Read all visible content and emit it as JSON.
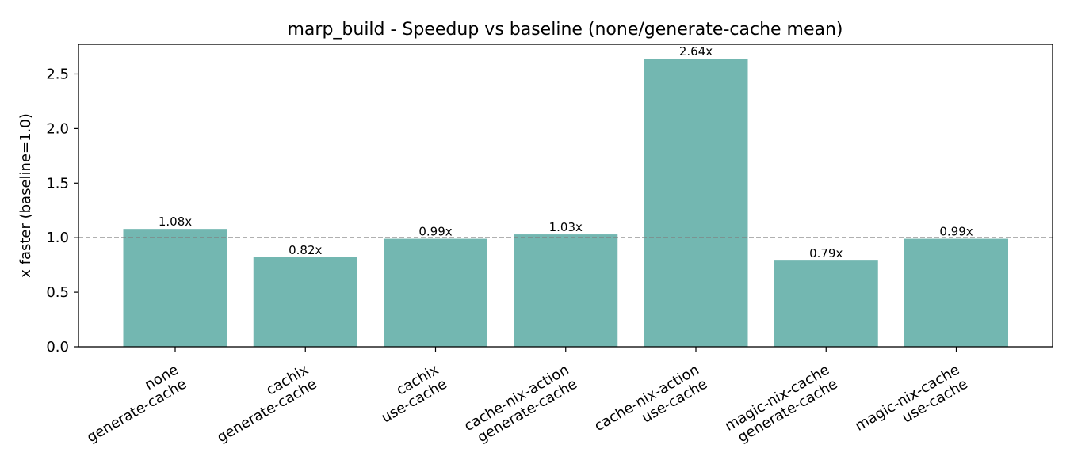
{
  "chart_data": {
    "type": "bar",
    "title": "marp_build - Speedup vs baseline (none/generate-cache mean)",
    "xlabel": "",
    "ylabel": "x faster (baseline=1.0)",
    "ylim": [
      0,
      2.772
    ],
    "yticks": [
      0.0,
      0.5,
      1.0,
      1.5,
      2.0,
      2.5
    ],
    "ytick_labels": [
      "0.0",
      "0.5",
      "1.0",
      "1.5",
      "2.0",
      "2.5"
    ],
    "categories": [
      [
        "none",
        "generate-cache"
      ],
      [
        "cachix",
        "generate-cache"
      ],
      [
        "cachix",
        "use-cache"
      ],
      [
        "cache-nix-action",
        "generate-cache"
      ],
      [
        "cache-nix-action",
        "use-cache"
      ],
      [
        "magic-nix-cache",
        "generate-cache"
      ],
      [
        "magic-nix-cache",
        "use-cache"
      ]
    ],
    "values": [
      1.08,
      0.82,
      0.99,
      1.03,
      2.64,
      0.79,
      0.99
    ],
    "value_labels": [
      "1.08x",
      "0.82x",
      "0.99x",
      "1.03x",
      "2.64x",
      "0.79x",
      "0.99x"
    ],
    "reference_line": {
      "y": 1.0,
      "style": "dashed",
      "color": "#808080"
    },
    "bar_color": "#73b7b1",
    "grid": false,
    "legend": "none"
  }
}
